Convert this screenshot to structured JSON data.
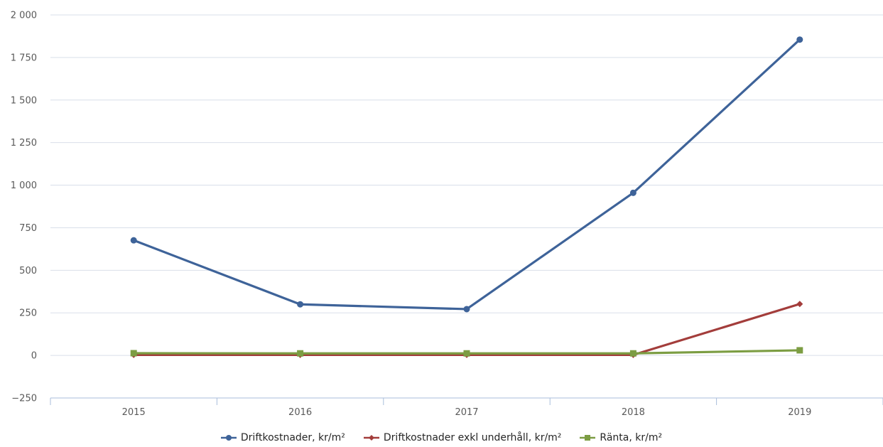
{
  "chart_data": {
    "type": "line",
    "categories": [
      "2015",
      "2016",
      "2017",
      "2018",
      "2019"
    ],
    "series": [
      {
        "name": "Driftkostnader, kr/m²",
        "color": "#3e6399",
        "marker": "circle",
        "values": [
          676,
          300,
          272,
          955,
          1855
        ]
      },
      {
        "name": "Driftkostnader exkl underhåll, kr/m²",
        "color": "#a33d3b",
        "marker": "diamond",
        "values": [
          3,
          3,
          3,
          3,
          302
        ]
      },
      {
        "name": "Ränta, kr/m²",
        "color": "#7c9d43",
        "marker": "square",
        "values": [
          13,
          12,
          12,
          12,
          30
        ]
      }
    ],
    "ylim": [
      -250,
      2000
    ],
    "yticks": [
      -250,
      0,
      250,
      500,
      750,
      1000,
      1250,
      1500,
      1750,
      2000
    ],
    "ytick_labels": [
      "−250",
      "0",
      "250",
      "500",
      "750",
      "1 000",
      "1 250",
      "1 500",
      "1 750",
      "2 000"
    ],
    "grid": true,
    "legend_position": "bottom"
  }
}
